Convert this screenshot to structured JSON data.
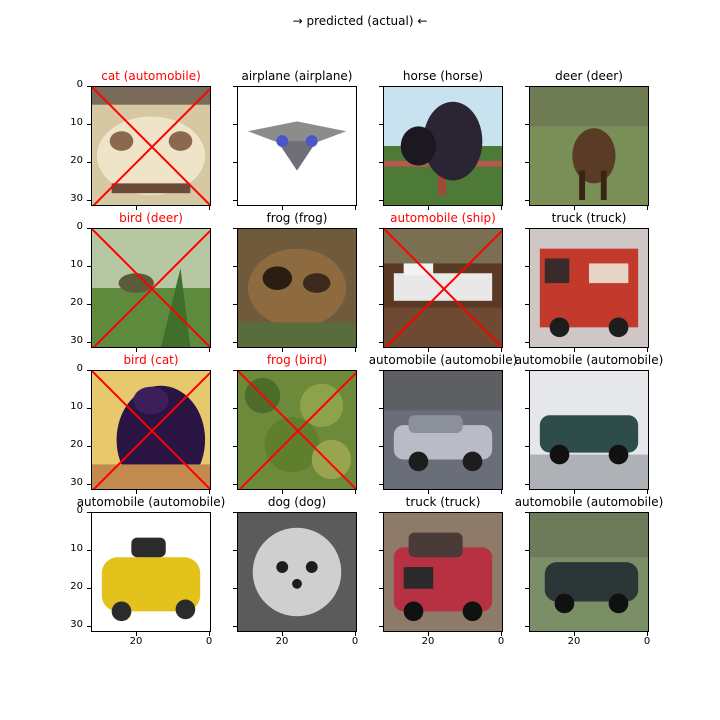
{
  "figure": {
    "title": "→ predicted (actual) ←",
    "colors": {
      "wrong": "#ff0000",
      "correct": "#000000"
    },
    "y_ticks": [
      "0",
      "10",
      "20",
      "30"
    ],
    "x_ticks": [
      "20",
      "0"
    ]
  },
  "panels": [
    {
      "title": "cat (automobile)",
      "correct": false,
      "image": "white car front close-up, beige blur"
    },
    {
      "title": "airplane (airplane)",
      "correct": true,
      "image": "grey plane on white background"
    },
    {
      "title": "horse (horse)",
      "correct": true,
      "image": "dark horse head by red fence"
    },
    {
      "title": "deer (deer)",
      "correct": true,
      "image": "brown deer on green field"
    },
    {
      "title": "bird (deer)",
      "correct": false,
      "image": "green grass with small animal"
    },
    {
      "title": "frog (frog)",
      "correct": true,
      "image": "brown frog close-up"
    },
    {
      "title": "automobile (ship)",
      "correct": false,
      "image": "white ship on brown"
    },
    {
      "title": "truck (truck)",
      "correct": true,
      "image": "red fire truck"
    },
    {
      "title": "bird (cat)",
      "correct": false,
      "image": "dark purple cat on yellow"
    },
    {
      "title": "frog (bird)",
      "correct": false,
      "image": "green and yellow foliage"
    },
    {
      "title": "automobile (automobile)",
      "correct": true,
      "image": "silver car"
    },
    {
      "title": "automobile (automobile)",
      "correct": true,
      "image": "dark green car"
    },
    {
      "title": "automobile (automobile)",
      "correct": true,
      "image": "yellow sports car"
    },
    {
      "title": "dog (dog)",
      "correct": true,
      "image": "white fluffy dog"
    },
    {
      "title": "truck (truck)",
      "correct": true,
      "image": "red truck"
    },
    {
      "title": "automobile (automobile)",
      "correct": true,
      "image": "dark car on grass"
    }
  ]
}
